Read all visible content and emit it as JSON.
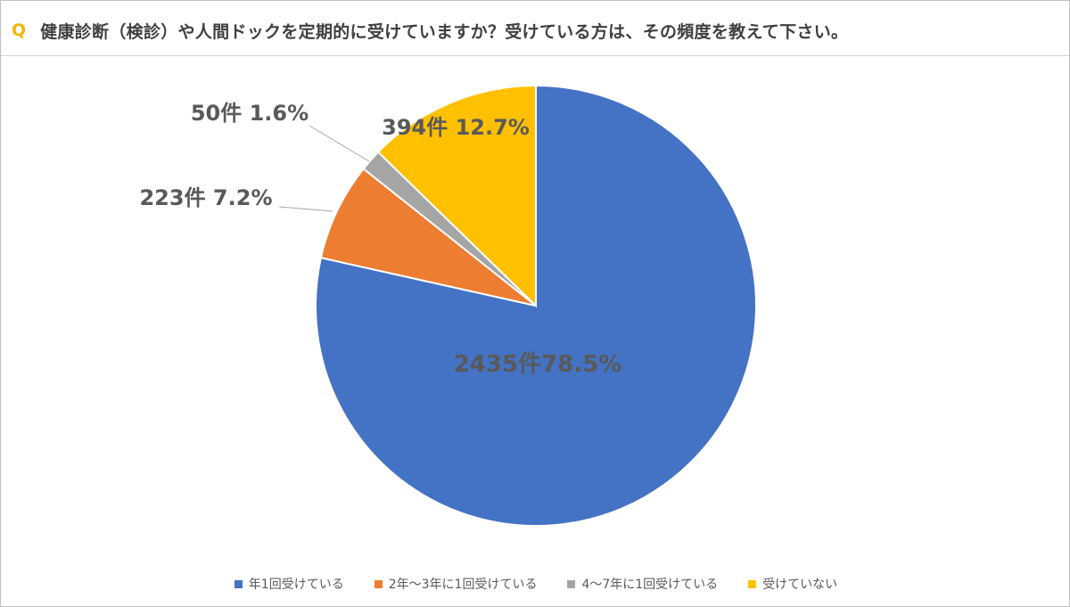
{
  "header": {
    "q_mark": "Q",
    "title": "健康診断（検診）や人間ドックを定期的に受けていますか？受けている方は、その頻度を教えて下さい。"
  },
  "chart_data": {
    "type": "pie",
    "title": "健康診断（検診）や人間ドックを定期的に受けていますか？受けている方は、その頻度を教えて下さい。",
    "categories": [
      "年1回受けている",
      "2年～3年に1回受けている",
      "4～7年に1回受けている",
      "受けていない"
    ],
    "values": [
      2435,
      223,
      50,
      394
    ],
    "percentages": [
      78.5,
      7.2,
      1.6,
      12.7
    ],
    "colors": [
      "#4472C4",
      "#ED7D31",
      "#A5A5A5",
      "#FFC000"
    ],
    "data_labels": [
      "2435件78.5%",
      "223件 7.2%",
      "50件 1.6%",
      "394件 12.7%"
    ],
    "legend_position": "bottom",
    "start_angle": "12 o'clock",
    "direction": "clockwise"
  }
}
